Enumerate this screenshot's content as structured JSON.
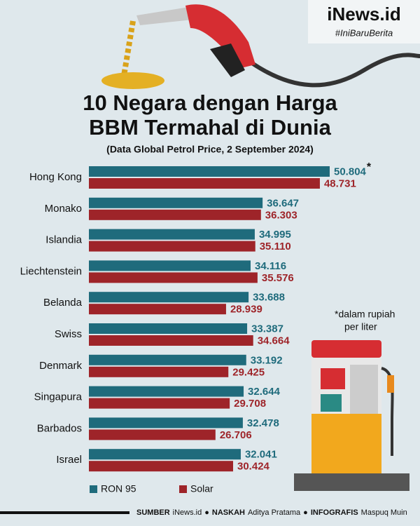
{
  "brand": {
    "name": "iNews.id",
    "tag": "#IniBaruBerita"
  },
  "chart_data": {
    "type": "bar",
    "orientation": "horizontal",
    "title": [
      "10 Negara dengan Harga",
      "BBM Termahal di Dunia"
    ],
    "subtitle": "(Data Global Petrol Price, 2 September 2024)",
    "categories": [
      "Hong Kong",
      "Monako",
      "Islandia",
      "Liechtenstein",
      "Belanda",
      "Swiss",
      "Denmark",
      "Singapura",
      "Barbados",
      "Israel"
    ],
    "series": [
      {
        "name": "RON 95",
        "color": "#1f6b7c",
        "values": [
          50804,
          36647,
          34995,
          34116,
          33688,
          33387,
          33192,
          32644,
          32478,
          32041
        ],
        "value_labels": [
          "50.804",
          "36.647",
          "34.995",
          "34.116",
          "33.688",
          "33.387",
          "33.192",
          "32.644",
          "32.478",
          "32.041"
        ]
      },
      {
        "name": "Solar",
        "color": "#9e2429",
        "values": [
          48731,
          36303,
          35110,
          35576,
          28939,
          34664,
          29425,
          29708,
          26706,
          30424
        ],
        "value_labels": [
          "48.731",
          "36.303",
          "35.110",
          "35.576",
          "28.939",
          "34.664",
          "29.425",
          "29.708",
          "26.706",
          "30.424"
        ]
      }
    ],
    "note_marker": "*",
    "note": [
      "*dalam rupiah",
      "per liter"
    ],
    "legend": "bottom-left"
  },
  "footer": [
    {
      "label": "SUMBER",
      "value": "iNews.id"
    },
    {
      "label": "NASKAH",
      "value": "Aditya Pratama"
    },
    {
      "label": "INFOGRAFIS",
      "value": "Maspuq Muin"
    }
  ]
}
